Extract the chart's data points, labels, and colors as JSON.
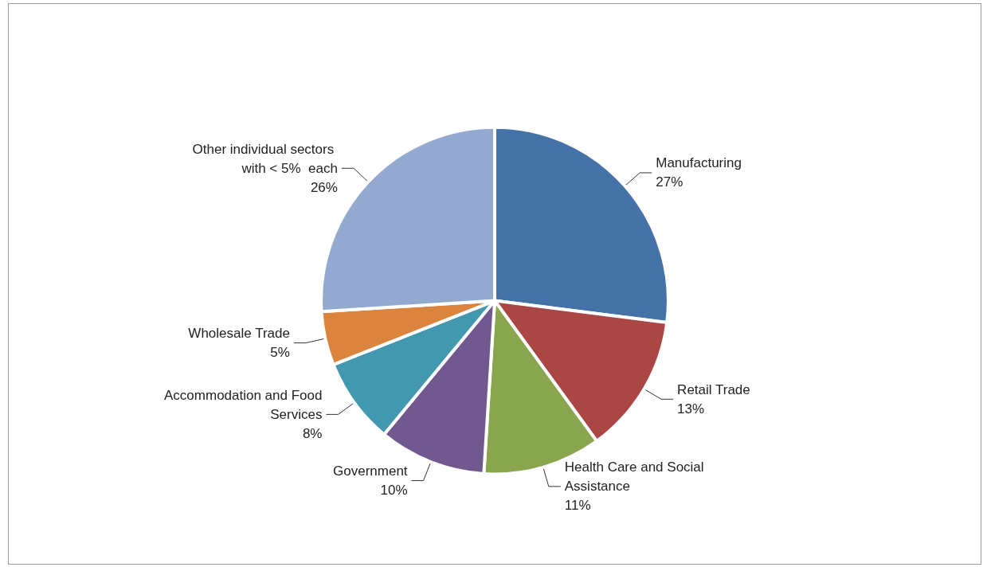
{
  "chart_data": {
    "type": "pie",
    "categories": [
      "Manufacturing",
      "Retail Trade",
      "Health Care and Social Assistance",
      "Government",
      "Accommodation and Food Services",
      "Wholesale Trade",
      "Other individual sectors with < 5%  each"
    ],
    "values": [
      27,
      13,
      11,
      10,
      8,
      5,
      26
    ],
    "colors": [
      "#4572a7",
      "#aa4643",
      "#89a54e",
      "#71588f",
      "#4198af",
      "#db843d",
      "#93a9cf"
    ],
    "value_labels": [
      "27%",
      "13%",
      "11%",
      "10%",
      "8%",
      "5%",
      "26%"
    ]
  }
}
